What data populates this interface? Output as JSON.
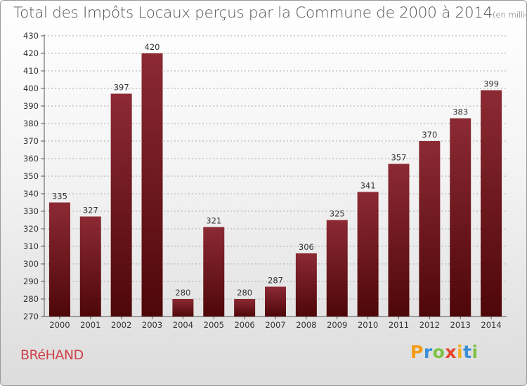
{
  "title": "Total des Impôts Locaux perçus par la Commune de 2000 à 2014",
  "subtitle": "(en milliers d'€)",
  "commune": "BRéHAND",
  "logo": {
    "letters": [
      "P",
      "r",
      "o",
      "x",
      "i",
      "t",
      "i"
    ],
    "colors": [
      "#f39c12",
      "#3a8fd8",
      "#7dc242",
      "#e8412b",
      "#f2b01e",
      "#3a8fd8",
      "#7dc242"
    ]
  },
  "colors": {
    "bar_top": "#8c2a34",
    "bar_bottom": "#4e0708",
    "grid": "#aaaaaa"
  },
  "chart_data": {
    "type": "bar",
    "categories": [
      "2000",
      "2001",
      "2002",
      "2003",
      "2004",
      "2005",
      "2006",
      "2007",
      "2008",
      "2009",
      "2010",
      "2011",
      "2012",
      "2013",
      "2014"
    ],
    "values": [
      335,
      327,
      397,
      420,
      280,
      321,
      280,
      287,
      306,
      325,
      341,
      357,
      370,
      383,
      399
    ],
    "title": "Total des Impôts Locaux perçus par la Commune de 2000 à 2014",
    "subtitle": "(en milliers d'€)",
    "xlabel": "",
    "ylabel": "",
    "ylim": [
      270,
      430
    ],
    "ytick_step": 10,
    "grid": true,
    "data_labels": true
  }
}
